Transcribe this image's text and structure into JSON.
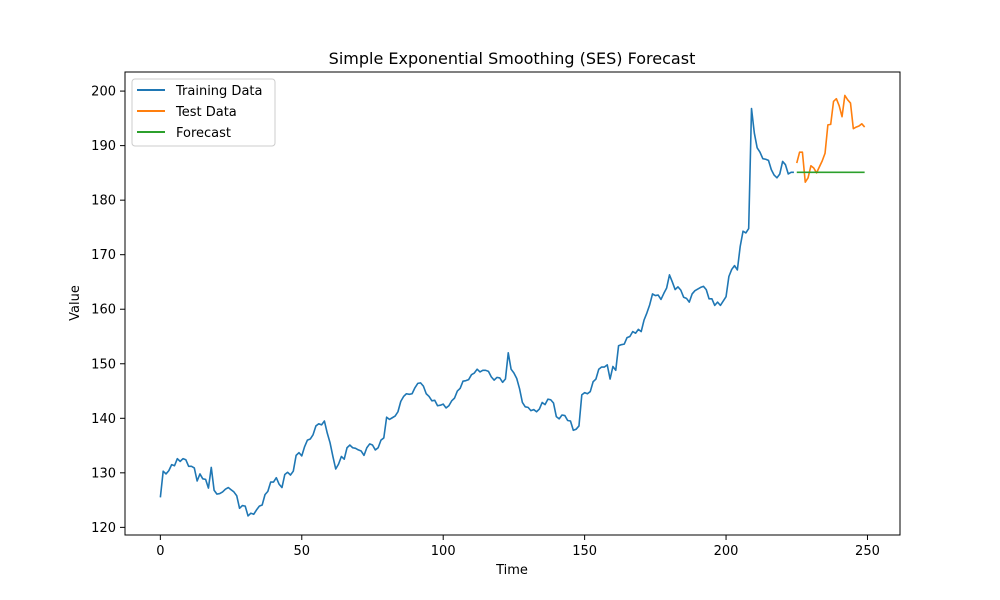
{
  "chart_data": {
    "type": "line",
    "title": "Simple Exponential Smoothing (SES) Forecast",
    "xlabel": "Time",
    "ylabel": "Value",
    "xlim": [
      -12.5,
      261.5
    ],
    "ylim": [
      118.6,
      203.5
    ],
    "xticks": [
      0,
      50,
      100,
      150,
      200,
      250
    ],
    "yticks": [
      120,
      130,
      140,
      150,
      160,
      170,
      180,
      190,
      200
    ],
    "grid": false,
    "legend_position": "top-left",
    "series": [
      {
        "name": "Training Data",
        "color": "#1f77b4",
        "points": [
          [
            0,
            125.5
          ],
          [
            1,
            130.3
          ],
          [
            2,
            129.8
          ],
          [
            3,
            130.4
          ],
          [
            4,
            131.5
          ],
          [
            5,
            131.3
          ],
          [
            6,
            132.6
          ],
          [
            7,
            132.1
          ],
          [
            8,
            132.6
          ],
          [
            9,
            132.4
          ],
          [
            10,
            131.2
          ],
          [
            11,
            131.2
          ],
          [
            12,
            130.9
          ],
          [
            13,
            128.5
          ],
          [
            14,
            129.8
          ],
          [
            15,
            128.9
          ],
          [
            16,
            128.8
          ],
          [
            17,
            127.2
          ],
          [
            18,
            131.0
          ],
          [
            19,
            126.8
          ],
          [
            20,
            126.1
          ],
          [
            21,
            126.2
          ],
          [
            22,
            126.5
          ],
          [
            23,
            127.0
          ],
          [
            24,
            127.3
          ],
          [
            25,
            126.9
          ],
          [
            26,
            126.5
          ],
          [
            27,
            125.8
          ],
          [
            28,
            123.5
          ],
          [
            29,
            124.0
          ],
          [
            30,
            123.9
          ],
          [
            31,
            122.1
          ],
          [
            32,
            122.6
          ],
          [
            33,
            122.4
          ],
          [
            34,
            123.2
          ],
          [
            35,
            123.9
          ],
          [
            36,
            124.1
          ],
          [
            37,
            126.0
          ],
          [
            38,
            126.6
          ],
          [
            39,
            128.3
          ],
          [
            40,
            128.3
          ],
          [
            41,
            129.1
          ],
          [
            42,
            127.9
          ],
          [
            43,
            127.3
          ],
          [
            44,
            129.7
          ],
          [
            45,
            130.1
          ],
          [
            46,
            129.6
          ],
          [
            47,
            130.3
          ],
          [
            48,
            133.2
          ],
          [
            49,
            133.7
          ],
          [
            50,
            133.1
          ],
          [
            51,
            134.8
          ],
          [
            52,
            136.0
          ],
          [
            53,
            136.2
          ],
          [
            54,
            137.0
          ],
          [
            55,
            138.6
          ],
          [
            56,
            139.0
          ],
          [
            57,
            138.8
          ],
          [
            58,
            139.5
          ],
          [
            59,
            137.3
          ],
          [
            60,
            135.5
          ],
          [
            61,
            133.0
          ],
          [
            62,
            130.7
          ],
          [
            63,
            131.6
          ],
          [
            64,
            133.0
          ],
          [
            65,
            132.5
          ],
          [
            66,
            134.6
          ],
          [
            67,
            135.1
          ],
          [
            68,
            134.6
          ],
          [
            69,
            134.5
          ],
          [
            70,
            134.2
          ],
          [
            71,
            134.0
          ],
          [
            72,
            133.2
          ],
          [
            73,
            134.6
          ],
          [
            74,
            135.3
          ],
          [
            75,
            135.1
          ],
          [
            76,
            134.2
          ],
          [
            77,
            134.6
          ],
          [
            78,
            136.0
          ],
          [
            79,
            136.4
          ],
          [
            80,
            140.2
          ],
          [
            81,
            139.8
          ],
          [
            82,
            140.1
          ],
          [
            83,
            140.4
          ],
          [
            84,
            141.2
          ],
          [
            85,
            143.1
          ],
          [
            86,
            144.0
          ],
          [
            87,
            144.5
          ],
          [
            88,
            144.4
          ],
          [
            89,
            144.5
          ],
          [
            90,
            145.6
          ],
          [
            91,
            146.4
          ],
          [
            92,
            146.5
          ],
          [
            93,
            145.9
          ],
          [
            94,
            144.5
          ],
          [
            95,
            144.0
          ],
          [
            96,
            143.2
          ],
          [
            97,
            143.3
          ],
          [
            98,
            142.3
          ],
          [
            99,
            142.4
          ],
          [
            100,
            142.6
          ],
          [
            101,
            141.9
          ],
          [
            102,
            142.3
          ],
          [
            103,
            143.2
          ],
          [
            104,
            143.7
          ],
          [
            105,
            145.0
          ],
          [
            106,
            145.5
          ],
          [
            107,
            146.8
          ],
          [
            108,
            146.9
          ],
          [
            109,
            147.1
          ],
          [
            110,
            148.0
          ],
          [
            111,
            148.3
          ],
          [
            112,
            149.0
          ],
          [
            113,
            148.5
          ],
          [
            114,
            148.8
          ],
          [
            115,
            148.8
          ],
          [
            116,
            148.6
          ],
          [
            117,
            147.6
          ],
          [
            118,
            147.0
          ],
          [
            119,
            147.5
          ],
          [
            120,
            147.4
          ],
          [
            121,
            146.6
          ],
          [
            122,
            147.2
          ],
          [
            123,
            152.0
          ],
          [
            124,
            149.0
          ],
          [
            125,
            148.3
          ],
          [
            126,
            147.3
          ],
          [
            127,
            145.4
          ],
          [
            128,
            142.9
          ],
          [
            129,
            142.1
          ],
          [
            130,
            142.0
          ],
          [
            131,
            141.4
          ],
          [
            132,
            141.6
          ],
          [
            133,
            141.2
          ],
          [
            134,
            141.7
          ],
          [
            135,
            142.9
          ],
          [
            136,
            142.5
          ],
          [
            137,
            143.5
          ],
          [
            138,
            143.4
          ],
          [
            139,
            142.8
          ],
          [
            140,
            140.3
          ],
          [
            141,
            139.9
          ],
          [
            142,
            140.6
          ],
          [
            143,
            140.5
          ],
          [
            144,
            139.6
          ],
          [
            145,
            139.5
          ],
          [
            146,
            137.8
          ],
          [
            147,
            138.0
          ],
          [
            148,
            138.6
          ],
          [
            149,
            144.3
          ],
          [
            150,
            144.7
          ],
          [
            151,
            144.5
          ],
          [
            152,
            144.9
          ],
          [
            153,
            146.7
          ],
          [
            154,
            147.2
          ],
          [
            155,
            149.0
          ],
          [
            156,
            149.4
          ],
          [
            157,
            149.4
          ],
          [
            158,
            149.8
          ],
          [
            159,
            147.2
          ],
          [
            160,
            149.5
          ],
          [
            161,
            148.8
          ],
          [
            162,
            153.3
          ],
          [
            163,
            153.5
          ],
          [
            164,
            153.6
          ],
          [
            165,
            154.8
          ],
          [
            166,
            155.0
          ],
          [
            167,
            155.9
          ],
          [
            168,
            155.6
          ],
          [
            169,
            156.3
          ],
          [
            170,
            155.9
          ],
          [
            171,
            158.0
          ],
          [
            172,
            159.3
          ],
          [
            173,
            160.8
          ],
          [
            174,
            162.8
          ],
          [
            175,
            162.5
          ],
          [
            176,
            162.6
          ],
          [
            177,
            161.8
          ],
          [
            178,
            162.9
          ],
          [
            179,
            163.9
          ],
          [
            180,
            166.3
          ],
          [
            181,
            165.0
          ],
          [
            182,
            163.6
          ],
          [
            183,
            164.1
          ],
          [
            184,
            163.5
          ],
          [
            185,
            162.2
          ],
          [
            186,
            162.0
          ],
          [
            187,
            161.3
          ],
          [
            188,
            162.8
          ],
          [
            189,
            163.4
          ],
          [
            190,
            163.7
          ],
          [
            191,
            164.0
          ],
          [
            192,
            164.2
          ],
          [
            193,
            163.6
          ],
          [
            194,
            161.9
          ],
          [
            195,
            161.9
          ],
          [
            196,
            160.7
          ],
          [
            197,
            161.3
          ],
          [
            198,
            160.7
          ],
          [
            199,
            161.5
          ],
          [
            200,
            162.3
          ],
          [
            201,
            166.0
          ],
          [
            202,
            167.3
          ],
          [
            203,
            168.0
          ],
          [
            204,
            167.2
          ],
          [
            205,
            171.5
          ],
          [
            206,
            174.3
          ],
          [
            207,
            174.0
          ],
          [
            208,
            174.8
          ],
          [
            209,
            196.8
          ],
          [
            210,
            192.3
          ],
          [
            211,
            189.6
          ],
          [
            212,
            188.8
          ],
          [
            213,
            187.6
          ],
          [
            214,
            187.5
          ],
          [
            215,
            187.3
          ],
          [
            216,
            185.6
          ],
          [
            217,
            184.6
          ],
          [
            218,
            184.1
          ],
          [
            219,
            184.8
          ],
          [
            220,
            187.1
          ],
          [
            221,
            186.5
          ],
          [
            222,
            184.8
          ],
          [
            223,
            185.1
          ],
          [
            224,
            185.1
          ]
        ]
      },
      {
        "name": "Test Data",
        "color": "#ff7f0e",
        "points": [
          [
            225,
            186.8
          ],
          [
            226,
            188.8
          ],
          [
            227,
            188.8
          ],
          [
            228,
            183.3
          ],
          [
            229,
            184.1
          ],
          [
            230,
            186.3
          ],
          [
            231,
            185.9
          ],
          [
            232,
            185.0
          ],
          [
            233,
            186.1
          ],
          [
            234,
            187.2
          ],
          [
            235,
            188.6
          ],
          [
            236,
            193.8
          ],
          [
            237,
            193.9
          ],
          [
            238,
            198.1
          ],
          [
            239,
            198.6
          ],
          [
            240,
            197.3
          ],
          [
            241,
            195.3
          ],
          [
            242,
            199.2
          ],
          [
            243,
            198.4
          ],
          [
            244,
            197.8
          ],
          [
            245,
            193.1
          ],
          [
            246,
            193.4
          ],
          [
            247,
            193.6
          ],
          [
            248,
            194.0
          ],
          [
            249,
            193.4
          ]
        ]
      },
      {
        "name": "Forecast",
        "color": "#2ca02c",
        "points": [
          [
            225,
            185.1
          ],
          [
            249,
            185.1
          ]
        ]
      }
    ]
  }
}
